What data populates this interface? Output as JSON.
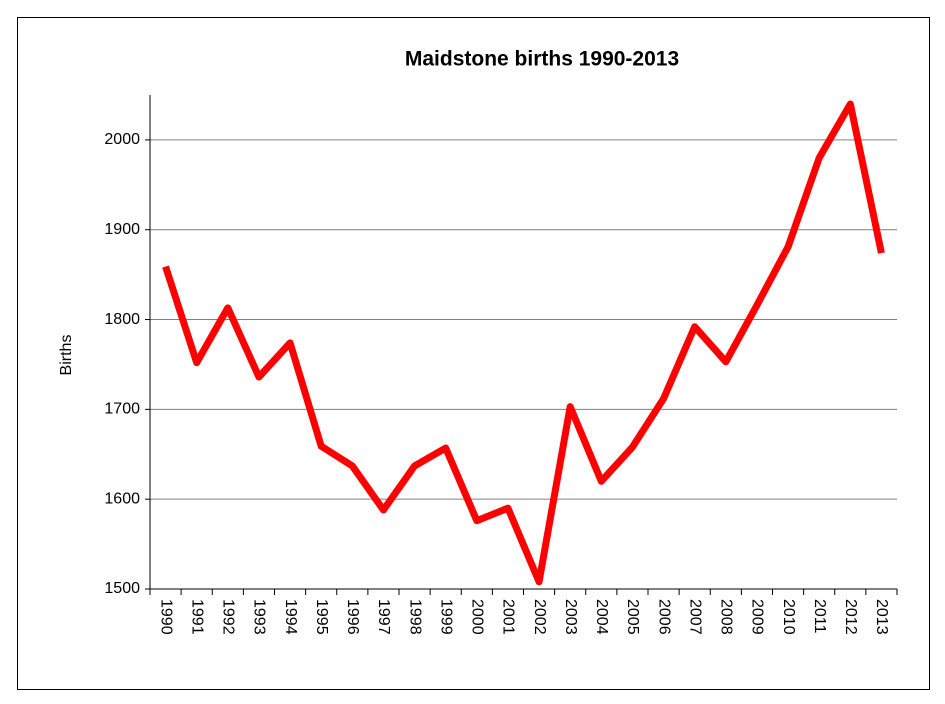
{
  "chart_data": {
    "type": "line",
    "title": "Maidstone births 1990-2013",
    "y_label": "Births",
    "categories": [
      "1990",
      "1991",
      "1992",
      "1993",
      "1994",
      "1995",
      "1996",
      "1997",
      "1998",
      "1999",
      "2000",
      "2001",
      "2002",
      "2003",
      "2004",
      "2005",
      "2006",
      "2007",
      "2008",
      "2009",
      "2010",
      "2011",
      "2012",
      "2013"
    ],
    "series": [
      {
        "name": "Births",
        "color": "#ff0000",
        "values": [
          1859,
          1752,
          1813,
          1736,
          1774,
          1659,
          1637,
          1588,
          1637,
          1657,
          1576,
          1590,
          1508,
          1703,
          1620,
          1658,
          1712,
          1792,
          1753,
          1816,
          1881,
          1980,
          2040,
          1874
        ]
      }
    ],
    "ylim": [
      1500,
      2050
    ],
    "yticks": [
      1500,
      1600,
      1700,
      1800,
      1900,
      2000
    ],
    "grid": true
  }
}
